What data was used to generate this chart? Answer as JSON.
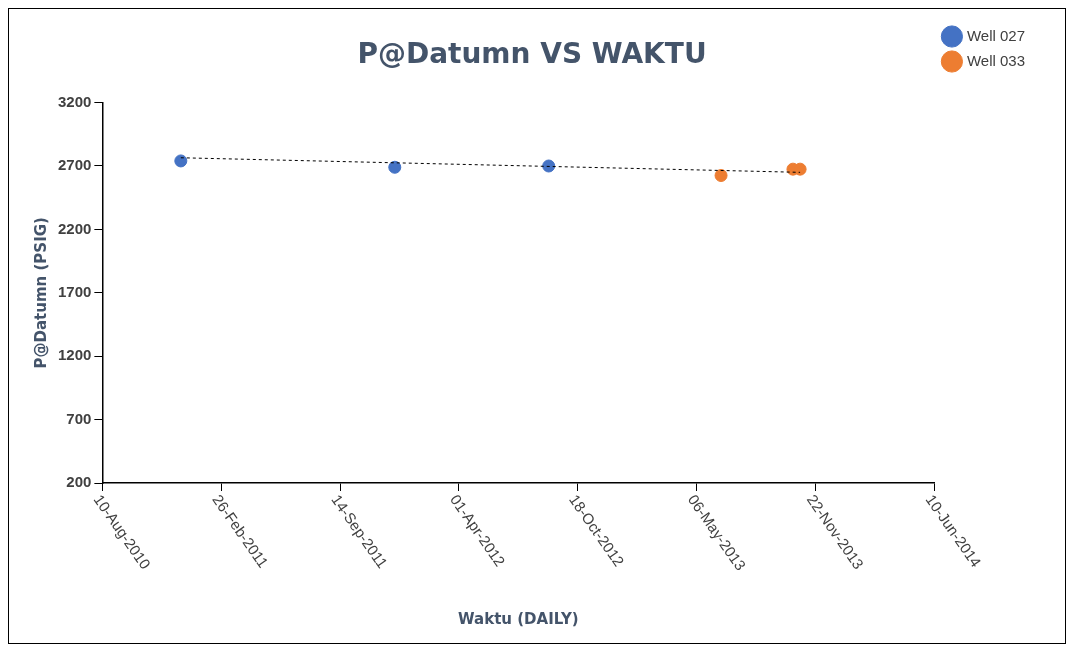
{
  "chart_data": {
    "type": "scatter",
    "title": "P@Datumn VS WAKTU",
    "xlabel": "Waktu (DAILY)",
    "ylabel": "P@Datumn (PSIG)",
    "xlim": [
      "2010-08-10",
      "2014-06-10"
    ],
    "xticks": [
      {
        "value": "2010-08-10",
        "label": "10-Aug-2010"
      },
      {
        "value": "2011-02-26",
        "label": "26-Feb-2011"
      },
      {
        "value": "2011-09-14",
        "label": "14-Sep-2011"
      },
      {
        "value": "2012-04-01",
        "label": "01-Apr-2012"
      },
      {
        "value": "2012-10-18",
        "label": "18-Oct-2012"
      },
      {
        "value": "2013-05-06",
        "label": "06-May-2013"
      },
      {
        "value": "2013-11-22",
        "label": "22-Nov-2013"
      },
      {
        "value": "2014-06-10",
        "label": "10-Jun-2014"
      }
    ],
    "ylim": [
      200,
      3200
    ],
    "yticks": [
      200,
      700,
      1200,
      1700,
      2200,
      2700,
      3200
    ],
    "marker": "circle",
    "grid": false,
    "legend": "top right",
    "series": [
      {
        "name": "Well 027",
        "color": "#4472c4",
        "x": [
          "2010-12-20",
          "2011-12-15",
          "2012-08-30"
        ],
        "values": [
          2740,
          2690,
          2700
        ]
      },
      {
        "name": "Well 033",
        "color": "#ed7d31",
        "x": [
          "2013-06-16",
          "2013-10-15",
          "2013-10-27"
        ],
        "values": [
          2625,
          2675,
          2675
        ]
      },
      {
        "type": "line",
        "color": "#000000",
        "line_style": "dashed",
        "marker": "none",
        "x": [
          "2010-12-20",
          "2013-10-27"
        ],
        "values": [
          2765,
          2650
        ]
      }
    ]
  }
}
